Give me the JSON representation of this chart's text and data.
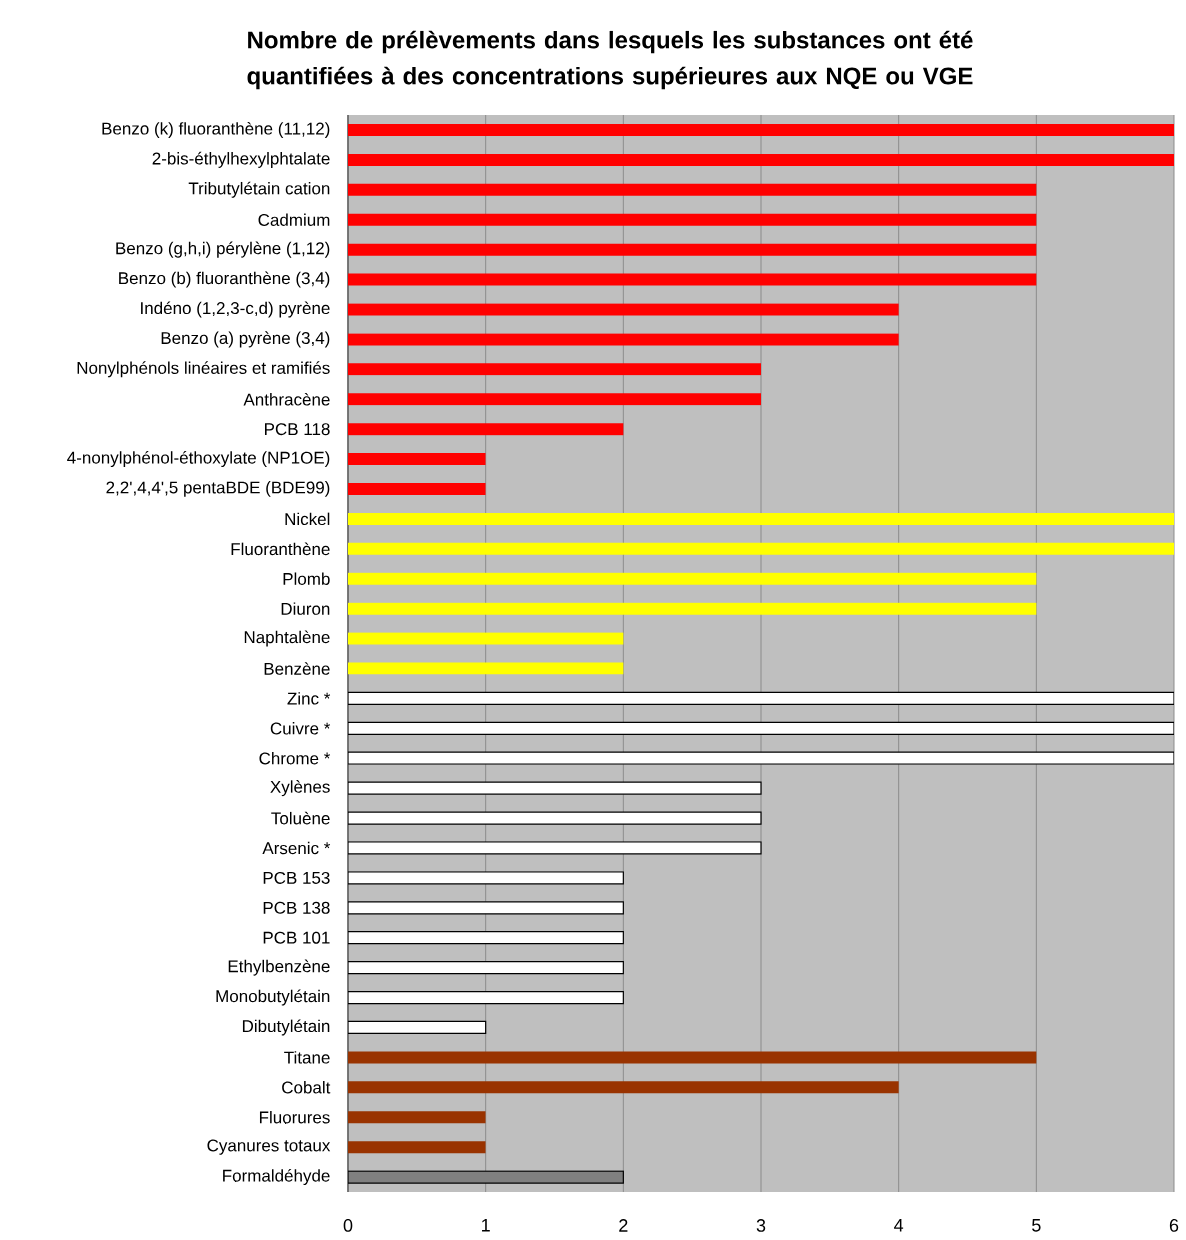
{
  "chart_data": {
    "type": "bar",
    "orientation": "horizontal",
    "title": "Nombre de prélèvements dans lesquels les substances ont été quantifiées à des concentrations supérieures aux NQE ou VGE",
    "categories": [
      "Benzo (k) fluoranthène (11,12)",
      "2-bis-éthylhexylphtalate",
      "Tributylétain cation",
      "Cadmium",
      "Benzo (g,h,i) pérylène (1,12)",
      "Benzo (b) fluoranthène (3,4)",
      "Indéno (1,2,3-c,d) pyrène",
      "Benzo (a) pyrène (3,4)",
      "Nonylphénols linéaires et ramifiés",
      "Anthracène",
      "PCB 118",
      "4-nonylphénol-éthoxylate (NP1OE)",
      "2,2',4,4',5 pentaBDE (BDE99)",
      "Nickel",
      "Fluoranthène",
      "Plomb",
      "Diuron",
      "Naphtalène",
      "Benzène",
      "Zinc *",
      "Cuivre *",
      "Chrome *",
      "Xylènes",
      "Toluène",
      "Arsenic *",
      "PCB 153",
      "PCB 138",
      "PCB 101",
      "Ethylbenzène",
      "Monobutylétain",
      "Dibutylétain",
      "Titane",
      "Cobalt",
      "Fluorures",
      "Cyanures totaux",
      "Formaldéhyde"
    ],
    "values": [
      6,
      6,
      5,
      5,
      5,
      5,
      4,
      4,
      3,
      3,
      2,
      1,
      1,
      6,
      6,
      5,
      5,
      2,
      2,
      6,
      6,
      6,
      3,
      3,
      3,
      2,
      2,
      2,
      2,
      2,
      1,
      5,
      4,
      1,
      1,
      2
    ],
    "colors": [
      "#ff0000",
      "#ff0000",
      "#ff0000",
      "#ff0000",
      "#ff0000",
      "#ff0000",
      "#ff0000",
      "#ff0000",
      "#ff0000",
      "#ff0000",
      "#ff0000",
      "#ff0000",
      "#ff0000",
      "#ffff00",
      "#ffff00",
      "#ffff00",
      "#ffff00",
      "#ffff00",
      "#ffff00",
      "#ffffff",
      "#ffffff",
      "#ffffff",
      "#ffffff",
      "#ffffff",
      "#ffffff",
      "#ffffff",
      "#ffffff",
      "#ffffff",
      "#ffffff",
      "#ffffff",
      "#ffffff",
      "#993300",
      "#993300",
      "#993300",
      "#993300",
      "#808080"
    ],
    "xlim": [
      0,
      6
    ],
    "xticks": [
      0,
      1,
      2,
      3,
      4,
      5,
      6
    ],
    "grid": "x"
  }
}
